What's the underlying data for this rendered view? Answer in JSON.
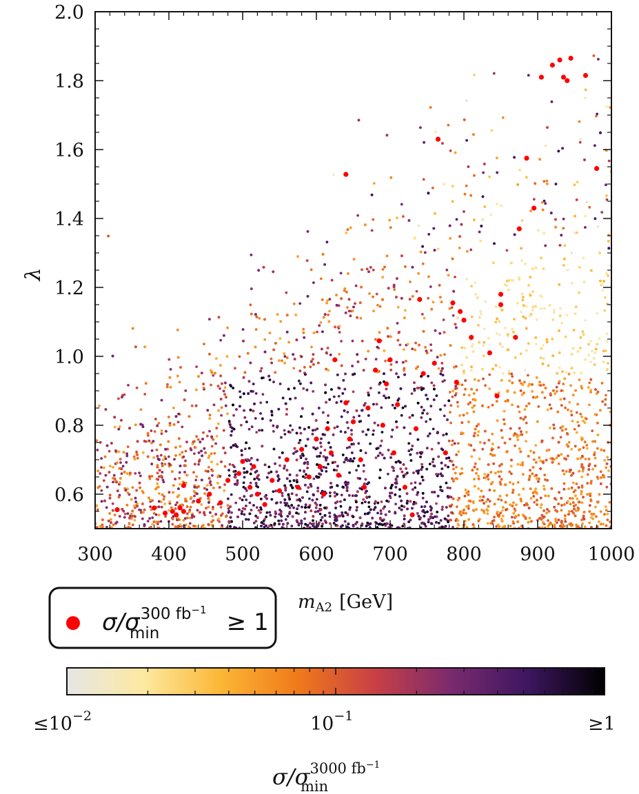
{
  "chart_data": {
    "type": "scatter",
    "xlabel": {
      "base": "m",
      "sub": "A2",
      "unit": "[GeV]"
    },
    "ylabel": "λ",
    "xlim": [
      300,
      1000
    ],
    "ylim": [
      0.5,
      2.0
    ],
    "x_ticks": [
      300,
      400,
      500,
      600,
      700,
      800,
      900,
      1000
    ],
    "y_ticks": [
      0.6,
      0.8,
      1.0,
      1.2,
      1.4,
      1.6,
      1.8,
      2.0
    ],
    "x_tick_labels": [
      "300",
      "400",
      "500",
      "600",
      "700",
      "800",
      "900",
      "1000"
    ],
    "y_tick_labels": [
      "0.6",
      "0.8",
      "1.0",
      "1.2",
      "1.4",
      "1.6",
      "1.8",
      "2.0"
    ],
    "colorbar": {
      "label": {
        "base": "σ/σ",
        "sub": "min",
        "sup": "3000 fb",
        "sup_exp": "−1"
      },
      "scale": "log",
      "range": [
        0.01,
        1
      ],
      "tick_labels": {
        "left": "≤10",
        "left_exp": "−2",
        "middle": "10",
        "middle_exp": "−1",
        "right": "≥1"
      },
      "colors": [
        "#e6e6e6",
        "#fde9a0",
        "#fbb736",
        "#f07a1a",
        "#c94045",
        "#7a2a6e",
        "#3d1660",
        "#000000"
      ]
    },
    "legend": {
      "marker_color": "#ff0000",
      "label": {
        "base": "σ/σ",
        "sub": "min",
        "sup": "300 fb",
        "sup_exp": "−1",
        "suffix": " ≥ 1"
      }
    },
    "highlight_series": {
      "name": "σ/σ_min^(300 fb^-1) ≥ 1",
      "color": "#ff0000",
      "points": [
        [
          330,
          0.555
        ],
        [
          380,
          0.56
        ],
        [
          395,
          0.545
        ],
        [
          405,
          0.55
        ],
        [
          410,
          0.54
        ],
        [
          415,
          0.56
        ],
        [
          420,
          0.55
        ],
        [
          420,
          0.625
        ],
        [
          440,
          0.58
        ],
        [
          455,
          0.6
        ],
        [
          470,
          0.575
        ],
        [
          480,
          0.64
        ],
        [
          495,
          0.66
        ],
        [
          500,
          0.695
        ],
        [
          510,
          0.62
        ],
        [
          515,
          0.68
        ],
        [
          520,
          0.6
        ],
        [
          530,
          0.57
        ],
        [
          540,
          0.64
        ],
        [
          550,
          0.61
        ],
        [
          560,
          0.7
        ],
        [
          575,
          0.62
        ],
        [
          580,
          0.73
        ],
        [
          590,
          0.65
        ],
        [
          600,
          0.76
        ],
        [
          605,
          0.68
        ],
        [
          610,
          0.6
        ],
        [
          615,
          0.79
        ],
        [
          620,
          0.72
        ],
        [
          625,
          0.99
        ],
        [
          630,
          0.655
        ],
        [
          640,
          0.865
        ],
        [
          645,
          0.76
        ],
        [
          650,
          0.81
        ],
        [
          660,
          0.7
        ],
        [
          665,
          0.62
        ],
        [
          670,
          0.85
        ],
        [
          680,
          0.96
        ],
        [
          685,
          1.045
        ],
        [
          690,
          0.8
        ],
        [
          695,
          0.92
        ],
        [
          700,
          0.99
        ],
        [
          705,
          0.72
        ],
        [
          710,
          0.86
        ],
        [
          720,
          0.62
        ],
        [
          730,
          0.54
        ],
        [
          735,
          0.79
        ],
        [
          740,
          1.165
        ],
        [
          745,
          0.95
        ],
        [
          760,
          0.98
        ],
        [
          765,
          1.63
        ],
        [
          775,
          0.72
        ],
        [
          785,
          1.155
        ],
        [
          790,
          0.925
        ],
        [
          795,
          1.13
        ],
        [
          800,
          1.105
        ],
        [
          810,
          1.055
        ],
        [
          835,
          1.01
        ],
        [
          845,
          0.885
        ],
        [
          850,
          1.18
        ],
        [
          850,
          1.15
        ],
        [
          870,
          1.055
        ],
        [
          875,
          1.37
        ],
        [
          885,
          1.575
        ],
        [
          895,
          1.43
        ],
        [
          905,
          1.81
        ],
        [
          920,
          1.845
        ],
        [
          930,
          1.86
        ],
        [
          935,
          1.81
        ],
        [
          940,
          1.8
        ],
        [
          945,
          1.865
        ],
        [
          965,
          1.815
        ],
        [
          980,
          1.545
        ],
        [
          640,
          1.528
        ]
      ]
    }
  }
}
